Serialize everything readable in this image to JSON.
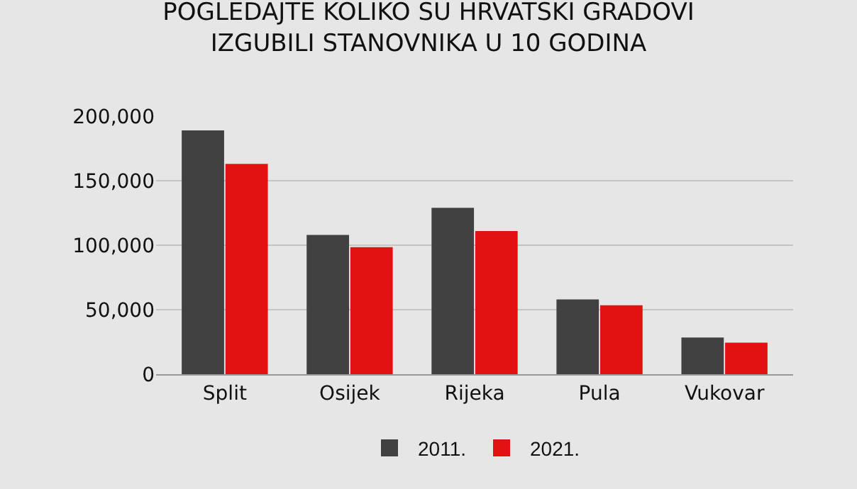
{
  "chart_data": {
    "type": "bar",
    "title": "POGLEDAJTE KOLIKO SU HRVATSKI GRADOVI\nIZGUBILI STANOVNIKA U 10 GODINA",
    "categories": [
      "Split",
      "Osijek",
      "Rijeka",
      "Pula",
      "Vukovar"
    ],
    "series": [
      {
        "name": "2011.",
        "color": "#414141",
        "values": [
          189000,
          108000,
          129000,
          58000,
          28500
        ]
      },
      {
        "name": "2021.",
        "color": "#e31212",
        "values": [
          163000,
          98500,
          111000,
          53500,
          24500
        ]
      }
    ],
    "ylim": [
      0,
      200000
    ],
    "yticks": [
      {
        "value": 0,
        "label": "0"
      },
      {
        "value": 50000,
        "label": "50,000"
      },
      {
        "value": 100000,
        "label": "100,000"
      },
      {
        "value": 150000,
        "label": "150,000"
      },
      {
        "value": 200000,
        "label": "200,000"
      }
    ],
    "grid": "y",
    "legend": "bottom"
  }
}
